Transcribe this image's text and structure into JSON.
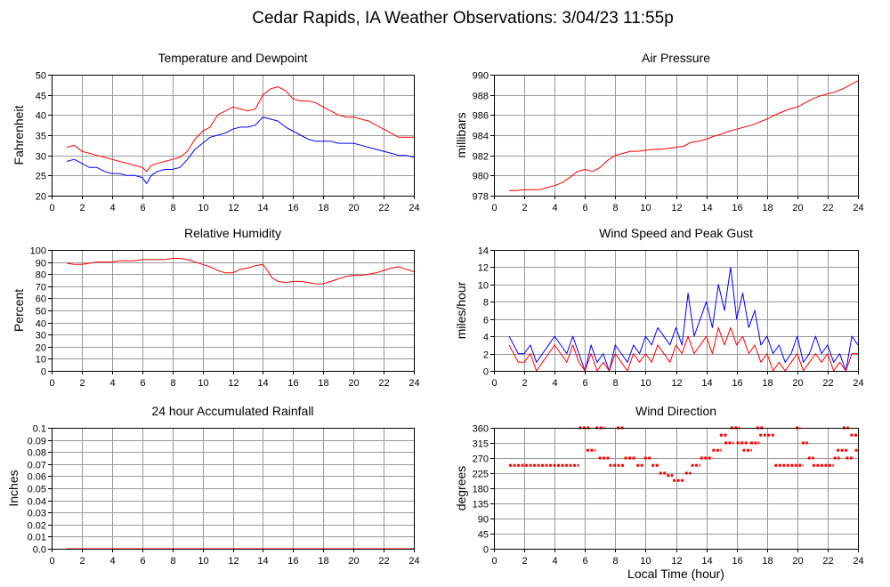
{
  "page": {
    "title": "Cedar Rapids, IA Weather Observations: 3/04/23 11:55p"
  },
  "chart_data": [
    {
      "id": "temp",
      "type": "line",
      "title": "Temperature and Dewpoint",
      "xlabel": "",
      "ylabel": "Fahrenheit",
      "xlim": [
        0,
        24
      ],
      "ylim": [
        20,
        50
      ],
      "xticks": [
        0,
        2,
        4,
        6,
        8,
        10,
        12,
        14,
        16,
        18,
        20,
        22,
        24
      ],
      "yticks": [
        20,
        25,
        30,
        35,
        40,
        45,
        50
      ],
      "series": [
        {
          "color": "#ff0000",
          "x": [
            1,
            1.5,
            2,
            2.5,
            3,
            3.5,
            4,
            4.5,
            5,
            5.5,
            6,
            6.3,
            6.6,
            7,
            7.5,
            8,
            8.5,
            9,
            9.5,
            10,
            10.5,
            11,
            11.5,
            12,
            12.5,
            13,
            13.5,
            14,
            14.5,
            15,
            15.5,
            16,
            16.5,
            17,
            17.5,
            18,
            18.5,
            19,
            19.5,
            20,
            20.5,
            21,
            21.5,
            22,
            22.5,
            23,
            23.5,
            24
          ],
          "y": [
            32,
            32.5,
            31,
            30.5,
            30,
            29.5,
            29,
            28.5,
            28,
            27.5,
            27,
            26,
            27.5,
            28,
            28.5,
            29,
            29.5,
            31,
            34,
            36,
            37,
            40,
            41,
            42,
            41.5,
            41,
            41.5,
            45,
            46.5,
            47,
            46,
            44,
            43.5,
            43.5,
            43,
            42,
            41,
            40,
            39.5,
            39.5,
            39,
            38.5,
            37.5,
            36.5,
            35.5,
            34.5,
            34.5,
            34.5
          ]
        },
        {
          "color": "#0000ff",
          "x": [
            1,
            1.5,
            2,
            2.5,
            3,
            3.5,
            4,
            4.5,
            5,
            5.5,
            6,
            6.3,
            6.6,
            7,
            7.5,
            8,
            8.5,
            9,
            9.5,
            10,
            10.5,
            11,
            11.5,
            12,
            12.5,
            13,
            13.5,
            14,
            14.5,
            15,
            15.5,
            16,
            16.5,
            17,
            17.5,
            18,
            18.5,
            19,
            19.5,
            20,
            20.5,
            21,
            21.5,
            22,
            22.5,
            23,
            23.5,
            24
          ],
          "y": [
            28.5,
            29,
            28,
            27,
            27,
            26,
            25.5,
            25.5,
            25,
            25,
            24.5,
            23,
            25,
            26,
            26.5,
            26.5,
            27,
            29,
            31.5,
            33,
            34.5,
            35,
            35.5,
            36.5,
            37,
            37,
            37.5,
            39.5,
            39,
            38.5,
            37,
            36,
            35,
            34,
            33.5,
            33.5,
            33.5,
            33,
            33,
            33,
            32.5,
            32,
            31.5,
            31,
            30.5,
            30,
            30,
            29.5
          ]
        }
      ]
    },
    {
      "id": "pressure",
      "type": "line",
      "title": "Air Pressure",
      "xlabel": "",
      "ylabel": "millibars",
      "xlim": [
        0,
        24
      ],
      "ylim": [
        978,
        990
      ],
      "xticks": [
        0,
        2,
        4,
        6,
        8,
        10,
        12,
        14,
        16,
        18,
        20,
        22,
        24
      ],
      "yticks": [
        978,
        980,
        982,
        984,
        986,
        988,
        990
      ],
      "series": [
        {
          "color": "#ff0000",
          "x": [
            1,
            1.5,
            2,
            2.5,
            3,
            3.5,
            4,
            4.5,
            5,
            5.5,
            6,
            6.5,
            7,
            7.5,
            8,
            8.5,
            9,
            9.5,
            10,
            10.5,
            11,
            11.5,
            12,
            12.5,
            13,
            13.5,
            14,
            14.5,
            15,
            15.5,
            16,
            16.5,
            17,
            17.5,
            18,
            18.5,
            19,
            19.5,
            20,
            20.5,
            21,
            21.5,
            22,
            22.5,
            23,
            23.5,
            24
          ],
          "y": [
            978.5,
            978.5,
            978.6,
            978.6,
            978.6,
            978.8,
            979,
            979.3,
            979.8,
            980.4,
            980.6,
            980.4,
            980.8,
            981.5,
            982,
            982.2,
            982.4,
            982.4,
            982.5,
            982.6,
            982.6,
            982.7,
            982.8,
            982.9,
            983.3,
            983.4,
            983.6,
            983.9,
            984.1,
            984.4,
            984.6,
            984.8,
            985,
            985.3,
            985.6,
            986,
            986.3,
            986.6,
            986.8,
            987.2,
            987.6,
            987.9,
            988.1,
            988.3,
            988.6,
            989,
            989.4
          ]
        }
      ]
    },
    {
      "id": "humidity",
      "type": "line",
      "title": "Relative Humidity",
      "xlabel": "",
      "ylabel": "Percent",
      "xlim": [
        0,
        24
      ],
      "ylim": [
        0,
        100
      ],
      "xticks": [
        0,
        2,
        4,
        6,
        8,
        10,
        12,
        14,
        16,
        18,
        20,
        22,
        24
      ],
      "yticks": [
        0,
        10,
        20,
        30,
        40,
        50,
        60,
        70,
        80,
        90,
        100
      ],
      "series": [
        {
          "color": "#ff0000",
          "x": [
            1,
            1.5,
            2,
            2.5,
            3,
            3.5,
            4,
            4.5,
            5,
            5.5,
            6,
            6.5,
            7,
            7.5,
            8,
            8.5,
            9,
            9.5,
            10,
            10.5,
            11,
            11.5,
            12,
            12.5,
            13,
            13.5,
            14,
            14.3,
            14.6,
            15,
            15.5,
            16,
            16.5,
            17,
            17.5,
            18,
            18.5,
            19,
            19.5,
            20,
            20.5,
            21,
            21.5,
            22,
            22.5,
            23,
            23.5,
            24
          ],
          "y": [
            89,
            88,
            88,
            89,
            90,
            90,
            90,
            91,
            91,
            91,
            92,
            92,
            92,
            92,
            93,
            93,
            92,
            90,
            88,
            86,
            83,
            81,
            81,
            84,
            85,
            87,
            88,
            83,
            77,
            74,
            73,
            74,
            74,
            73,
            72,
            72,
            74,
            76,
            78,
            79,
            79,
            80,
            81,
            83,
            85,
            86,
            84,
            82
          ]
        }
      ]
    },
    {
      "id": "wind",
      "type": "line",
      "title": "Wind Speed and Peak Gust",
      "xlabel": "",
      "ylabel": "miles/hour",
      "xlim": [
        0,
        24
      ],
      "ylim": [
        0,
        14
      ],
      "xticks": [
        0,
        2,
        4,
        6,
        8,
        10,
        12,
        14,
        16,
        18,
        20,
        22,
        24
      ],
      "yticks": [
        0,
        2,
        4,
        6,
        8,
        10,
        12,
        14
      ],
      "series": [
        {
          "color": "#0000ff",
          "x": [
            1,
            1.3,
            1.6,
            2,
            2.4,
            2.8,
            3.2,
            3.6,
            4,
            4.4,
            4.8,
            5.2,
            5.6,
            6,
            6.4,
            6.8,
            7.2,
            7.6,
            8,
            8.4,
            8.8,
            9.2,
            9.6,
            10,
            10.4,
            10.8,
            11.2,
            11.6,
            12,
            12.4,
            12.8,
            13.2,
            13.6,
            14,
            14.4,
            14.8,
            15.2,
            15.6,
            16,
            16.4,
            16.8,
            17.2,
            17.6,
            18,
            18.4,
            18.8,
            19.2,
            19.6,
            20,
            20.4,
            20.8,
            21.2,
            21.6,
            22,
            22.4,
            22.8,
            23.2,
            23.6,
            24
          ],
          "y": [
            4,
            3,
            2,
            2,
            3,
            1,
            2,
            3,
            4,
            3,
            2,
            4,
            2,
            0,
            3,
            1,
            2,
            0,
            3,
            2,
            1,
            3,
            2,
            4,
            3,
            5,
            4,
            3,
            5,
            3,
            9,
            4,
            6,
            8,
            5,
            10,
            7,
            12,
            6,
            9,
            5,
            7,
            3,
            4,
            2,
            3,
            1,
            2,
            4,
            1,
            2,
            4,
            2,
            3,
            1,
            2,
            0,
            4,
            3
          ]
        },
        {
          "color": "#ff0000",
          "x": [
            1,
            1.3,
            1.6,
            2,
            2.4,
            2.8,
            3.2,
            3.6,
            4,
            4.4,
            4.8,
            5.2,
            5.6,
            6,
            6.4,
            6.8,
            7.2,
            7.6,
            8,
            8.4,
            8.8,
            9.2,
            9.6,
            10,
            10.4,
            10.8,
            11.2,
            11.6,
            12,
            12.4,
            12.8,
            13.2,
            13.6,
            14,
            14.4,
            14.8,
            15.2,
            15.6,
            16,
            16.4,
            16.8,
            17.2,
            17.6,
            18,
            18.4,
            18.8,
            19.2,
            19.6,
            20,
            20.4,
            20.8,
            21.2,
            21.6,
            22,
            22.4,
            22.8,
            23.2,
            23.6,
            24
          ],
          "y": [
            3,
            2,
            1,
            1,
            2,
            0,
            1,
            2,
            3,
            2,
            1,
            3,
            1,
            0,
            2,
            0,
            1,
            0,
            2,
            1,
            0,
            2,
            1,
            2,
            1,
            3,
            2,
            1,
            3,
            2,
            4,
            2,
            3,
            4,
            2,
            5,
            3,
            5,
            3,
            4,
            2,
            3,
            1,
            2,
            0,
            1,
            0,
            1,
            2,
            0,
            1,
            2,
            1,
            2,
            0,
            1,
            0,
            2,
            2
          ]
        }
      ]
    },
    {
      "id": "rain",
      "type": "line",
      "title": "24 hour Accumulated Rainfall",
      "xlabel": "",
      "ylabel": "Inches",
      "xlim": [
        0,
        24
      ],
      "ylim": [
        0,
        0.1
      ],
      "xticks": [
        0,
        2,
        4,
        6,
        8,
        10,
        12,
        14,
        16,
        18,
        20,
        22,
        24
      ],
      "yticks": [
        0.0,
        0.01,
        0.02,
        0.03,
        0.04,
        0.05,
        0.06,
        0.07,
        0.08,
        0.09,
        0.1
      ],
      "ytick_labels": [
        "0.0",
        "0.01",
        "0.02",
        "0.03",
        "0.04",
        "0.05",
        "0.06",
        "0.07",
        "0.08",
        "0.09",
        "0.1"
      ],
      "series": [
        {
          "color": "#ff0000",
          "x": [
            1,
            24
          ],
          "y": [
            0,
            0
          ]
        }
      ]
    },
    {
      "id": "direction",
      "type": "scatter",
      "title": "Wind Direction",
      "xlabel": "Local Time (hour)",
      "ylabel": "degrees",
      "xlim": [
        0,
        24
      ],
      "ylim": [
        0,
        360
      ],
      "xticks": [
        0,
        2,
        4,
        6,
        8,
        10,
        12,
        14,
        16,
        18,
        20,
        22,
        24
      ],
      "yticks": [
        0,
        45,
        90,
        135,
        180,
        225,
        270,
        315,
        360
      ],
      "series": [
        {
          "color": "#ff0000",
          "segments": [
            {
              "x0": 1.0,
              "x1": 5.6,
              "y": 248
            },
            {
              "x0": 5.6,
              "x1": 6.3,
              "y": 360
            },
            {
              "x0": 6.1,
              "x1": 6.7,
              "y": 293
            },
            {
              "x0": 6.7,
              "x1": 7.3,
              "y": 360
            },
            {
              "x0": 6.9,
              "x1": 7.6,
              "y": 270
            },
            {
              "x0": 7.6,
              "x1": 8.6,
              "y": 248
            },
            {
              "x0": 8.1,
              "x1": 8.6,
              "y": 360
            },
            {
              "x0": 8.6,
              "x1": 9.4,
              "y": 270
            },
            {
              "x0": 9.4,
              "x1": 9.9,
              "y": 248
            },
            {
              "x0": 9.9,
              "x1": 10.4,
              "y": 270
            },
            {
              "x0": 10.4,
              "x1": 10.9,
              "y": 248
            },
            {
              "x0": 10.9,
              "x1": 11.4,
              "y": 225
            },
            {
              "x0": 11.4,
              "x1": 11.8,
              "y": 218
            },
            {
              "x0": 11.8,
              "x1": 12.6,
              "y": 203
            },
            {
              "x0": 12.6,
              "x1": 13.0,
              "y": 225
            },
            {
              "x0": 13.0,
              "x1": 13.6,
              "y": 248
            },
            {
              "x0": 13.6,
              "x1": 14.4,
              "y": 270
            },
            {
              "x0": 14.4,
              "x1": 15.0,
              "y": 293
            },
            {
              "x0": 14.9,
              "x1": 15.4,
              "y": 338
            },
            {
              "x0": 15.2,
              "x1": 15.8,
              "y": 315
            },
            {
              "x0": 15.6,
              "x1": 16.2,
              "y": 360
            },
            {
              "x0": 16.0,
              "x1": 16.8,
              "y": 315
            },
            {
              "x0": 16.4,
              "x1": 17.0,
              "y": 293
            },
            {
              "x0": 16.9,
              "x1": 17.5,
              "y": 315
            },
            {
              "x0": 17.3,
              "x1": 17.8,
              "y": 360
            },
            {
              "x0": 17.5,
              "x1": 18.5,
              "y": 338
            },
            {
              "x0": 18.5,
              "x1": 20.4,
              "y": 248
            },
            {
              "x0": 19.9,
              "x1": 20.2,
              "y": 360
            },
            {
              "x0": 20.3,
              "x1": 20.7,
              "y": 315
            },
            {
              "x0": 20.7,
              "x1": 21.1,
              "y": 270
            },
            {
              "x0": 21.0,
              "x1": 22.4,
              "y": 248
            },
            {
              "x0": 22.4,
              "x1": 22.8,
              "y": 270
            },
            {
              "x0": 22.6,
              "x1": 23.3,
              "y": 293
            },
            {
              "x0": 23.0,
              "x1": 23.4,
              "y": 360
            },
            {
              "x0": 23.2,
              "x1": 23.7,
              "y": 270
            },
            {
              "x0": 23.5,
              "x1": 24.0,
              "y": 338
            },
            {
              "x0": 23.8,
              "x1": 24.0,
              "y": 293
            }
          ]
        }
      ]
    }
  ]
}
